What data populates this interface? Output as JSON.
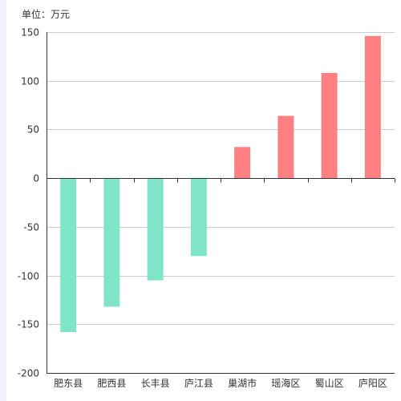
{
  "unit_label": "单位：万元",
  "colors": {
    "positive": "#ff8080",
    "negative": "#80e5c8",
    "grid": "#cccccc",
    "axis": "#333333"
  },
  "chart_data": {
    "type": "bar",
    "title": "",
    "xlabel": "",
    "ylabel": "",
    "categories": [
      "肥东县",
      "肥西县",
      "长丰县",
      "庐江县",
      "巢湖市",
      "瑶海区",
      "蜀山区",
      "庐阳区"
    ],
    "values": [
      -158,
      -132,
      -105,
      -80,
      32,
      64,
      108,
      146
    ],
    "ylim": [
      -200,
      150
    ],
    "yticks": [
      150,
      100,
      50,
      0,
      -50,
      -100,
      -150,
      -200
    ],
    "grid": true,
    "legend": "none"
  }
}
